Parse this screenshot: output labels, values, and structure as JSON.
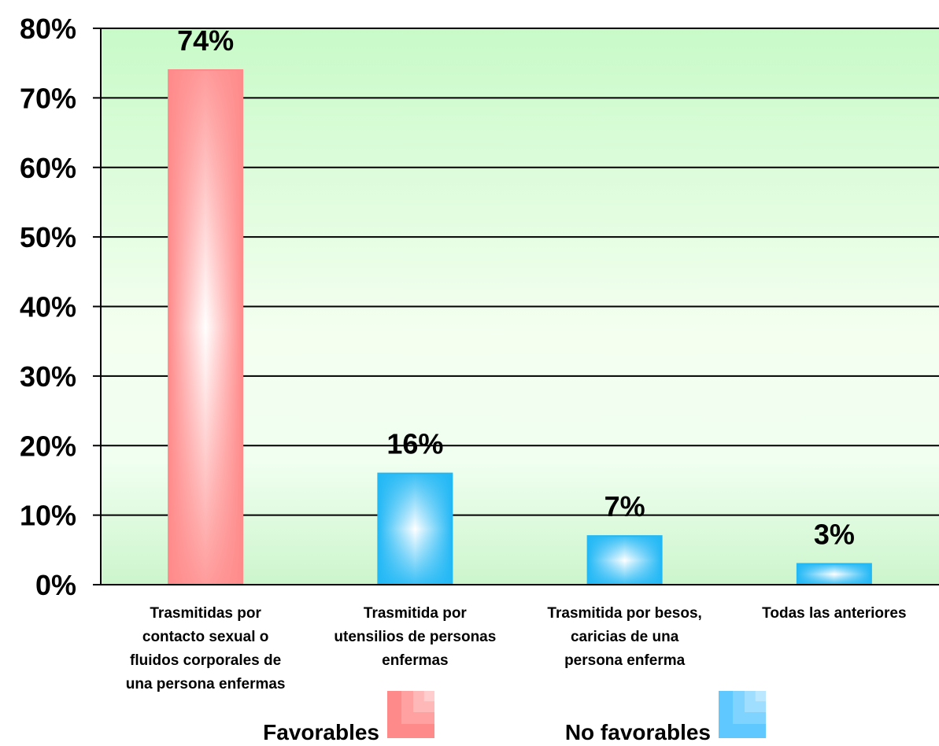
{
  "chart_data": {
    "type": "bar",
    "categories": [
      "Trasmitidas por contacto sexual o fluidos corporales de una persona enfermas",
      "Trasmitida por utensilios de personas enfermas",
      "Trasmitida por besos, caricias de una persona enferma",
      "Todas las anteriores"
    ],
    "category_lines": [
      [
        "Trasmitidas por",
        "contacto sexual o",
        "fluidos corporales de",
        "una persona enfermas"
      ],
      [
        "Trasmitida por",
        "utensilios de personas",
        "enfermas"
      ],
      [
        "Trasmitida por besos,",
        "caricias de una",
        "persona enferma"
      ],
      [
        "Todas las anteriores"
      ]
    ],
    "values": [
      74,
      16,
      7,
      3
    ],
    "data_labels": [
      "74%",
      "16%",
      "7%",
      "3%"
    ],
    "bar_groups": [
      "Favorables",
      "No favorables",
      "No favorables",
      "No favorables"
    ],
    "ylim": [
      0,
      80
    ],
    "yticks": [
      0,
      10,
      20,
      30,
      40,
      50,
      60,
      70,
      80
    ],
    "ytick_labels": [
      "0%",
      "10%",
      "20%",
      "30%",
      "40%",
      "50%",
      "60%",
      "70%",
      "80%"
    ],
    "grid": true,
    "legend_position": "bottom",
    "legend": [
      {
        "label": "Favorables",
        "color": "#ff8a8a"
      },
      {
        "label": "No favorables",
        "color": "#5fc8ff"
      }
    ],
    "colors": {
      "favorable": "#ff8a8a",
      "no_favorable": "#22b8f5",
      "plot_bg_top": "#c8fac8",
      "plot_bg_bottom": "#ffffff"
    },
    "title": "",
    "xlabel": "",
    "ylabel": ""
  }
}
